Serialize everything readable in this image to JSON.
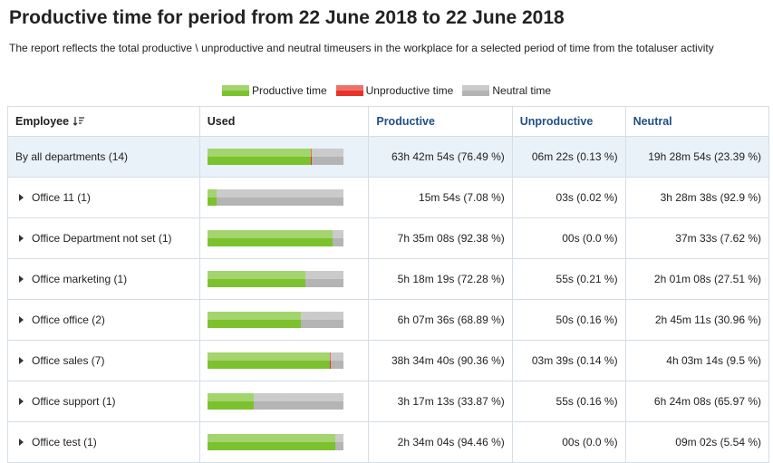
{
  "header": {
    "title": "Productive time for period from 22 June 2018 to 22 June 2018",
    "description": "The report reflects the total productive \\ unproductive and neutral timeusers in the workplace for a selected period of time from the totaluser activity"
  },
  "legend": [
    {
      "label": "Productive time",
      "color": "#7cc12e"
    },
    {
      "label": "Unproductive time",
      "color": "#e8332a"
    },
    {
      "label": "Neutral time",
      "color": "#b4b4b4"
    }
  ],
  "table": {
    "columns": [
      "Employee",
      "Used",
      "Productive",
      "Unproductive",
      "Neutral"
    ],
    "rows": [
      {
        "employee": "By all departments (14)",
        "expandable": false,
        "used": [
          76.49,
          0.13,
          23.39
        ],
        "productive": "63h 42m 54s (76.49 %)",
        "unproductive": "06m 22s (0.13 %)",
        "neutral": "19h 28m 54s (23.39 %)"
      },
      {
        "employee": "Office 11 (1)",
        "expandable": true,
        "used": [
          7.08,
          0.02,
          92.9
        ],
        "productive": "15m 54s (7.08 %)",
        "unproductive": "03s (0.02 %)",
        "neutral": "3h 28m 38s (92.9 %)"
      },
      {
        "employee": "Office Department not set (1)",
        "expandable": true,
        "used": [
          92.38,
          0.0,
          7.62
        ],
        "productive": "7h 35m 08s (92.38 %)",
        "unproductive": "00s (0.0 %)",
        "neutral": "37m 33s (7.62 %)"
      },
      {
        "employee": "Office marketing (1)",
        "expandable": true,
        "used": [
          72.28,
          0.21,
          27.51
        ],
        "productive": "5h 18m 19s (72.28 %)",
        "unproductive": "55s (0.21 %)",
        "neutral": "2h 01m 08s (27.51 %)"
      },
      {
        "employee": "Office office (2)",
        "expandable": true,
        "used": [
          68.89,
          0.16,
          30.96
        ],
        "productive": "6h 07m 36s (68.89 %)",
        "unproductive": "50s (0.16 %)",
        "neutral": "2h 45m 11s (30.96 %)"
      },
      {
        "employee": "Office sales (7)",
        "expandable": true,
        "used": [
          90.36,
          0.14,
          9.5
        ],
        "productive": "38h 34m 40s (90.36 %)",
        "unproductive": "03m 39s (0.14 %)",
        "neutral": "4h 03m 14s (9.5 %)"
      },
      {
        "employee": "Office support (1)",
        "expandable": true,
        "used": [
          33.87,
          0.16,
          65.97
        ],
        "productive": "3h 17m 13s (33.87 %)",
        "unproductive": "55s (0.16 %)",
        "neutral": "6h 24m 08s (65.97 %)"
      },
      {
        "employee": "Office test (1)",
        "expandable": true,
        "used": [
          94.46,
          0.0,
          5.54
        ],
        "productive": "2h 34m 04s (94.46 %)",
        "unproductive": "00s (0.0 %)",
        "neutral": "09m 02s (5.54 %)"
      }
    ]
  }
}
